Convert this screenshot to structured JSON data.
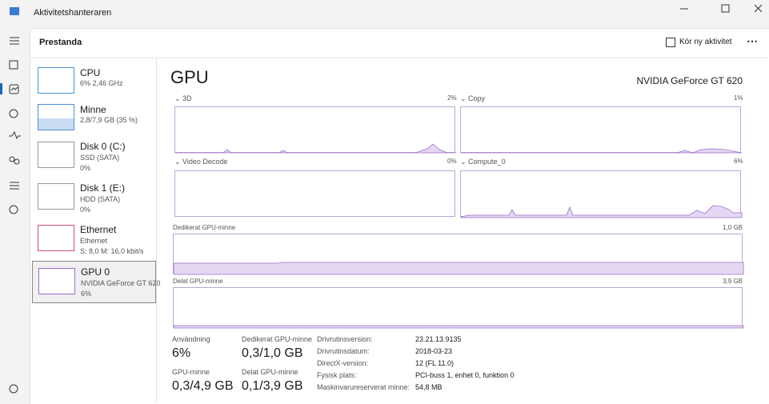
{
  "window": {
    "title": "Aktivitetshanteraren"
  },
  "header": {
    "title": "Prestanda",
    "run_task": "Kör ny aktivitet"
  },
  "sidebar": [
    {
      "name": "CPU",
      "line1": "6% 2,46 GHz"
    },
    {
      "name": "Minne",
      "line1": "2,8/7,9 GB (35 %)"
    },
    {
      "name": "Disk 0 (C:)",
      "line1": "SSD (SATA)",
      "line2": "0%"
    },
    {
      "name": "Disk 1 (E:)",
      "line1": "HDD (SATA)",
      "line2": "0%"
    },
    {
      "name": "Ethernet",
      "line1": "Ethernet",
      "line2": "S: 8,0  M: 16,0 kbit/s"
    },
    {
      "name": "GPU 0",
      "line1": "NVIDIA GeForce GT 620",
      "line2": "6%"
    }
  ],
  "main": {
    "title": "GPU",
    "device": "NVIDIA GeForce GT 620",
    "graphs": [
      {
        "label": "3D",
        "value": "2%"
      },
      {
        "label": "Copy",
        "value": "1%"
      },
      {
        "label": "Video Decode",
        "value": "0%"
      },
      {
        "label": "Compute_0",
        "value": "6%"
      }
    ],
    "memory_graphs": [
      {
        "label": "Dedikerat GPU-minne",
        "max": "1,0 GB"
      },
      {
        "label": "Delat GPU-minne",
        "max": "3,9 GB"
      }
    ],
    "stats": [
      {
        "label": "Användning",
        "value": "6%"
      },
      {
        "label": "Dedikerat GPU-minne",
        "value": "0,3/1,0 GB"
      },
      {
        "label": "GPU-minne",
        "value": "0,3/4,9 GB"
      },
      {
        "label": "Delat GPU-minne",
        "value": "0,1/3,9 GB"
      }
    ],
    "details": [
      {
        "label": "Drivrutinsversion:",
        "value": "23.21.13.9135"
      },
      {
        "label": "Drivrutinsdatum:",
        "value": "2018-03-23"
      },
      {
        "label": "DirectX-version:",
        "value": "12 (FL 11.0)"
      },
      {
        "label": "Fysisk plats:",
        "value": "PCI-buss 1, enhet 0, funktion 0"
      },
      {
        "label": "Maskinvarureserverat minne:",
        "value": "54,8 MB"
      }
    ]
  }
}
